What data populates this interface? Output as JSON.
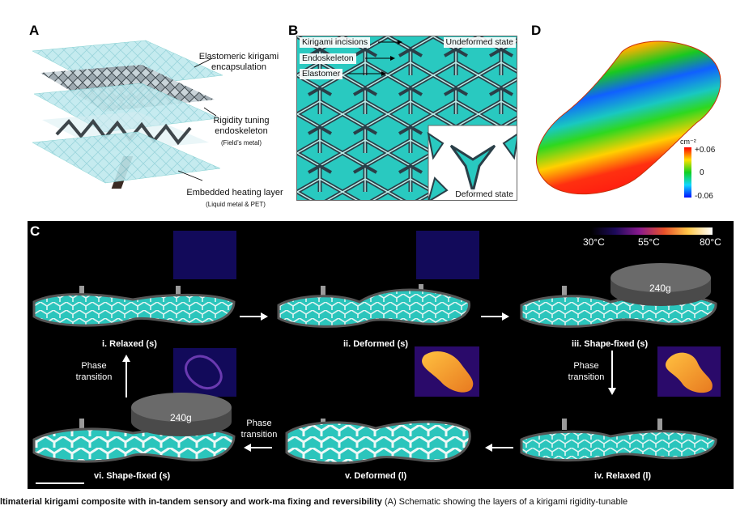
{
  "panels": {
    "a": {
      "letter": "A",
      "labels": {
        "encapsulation": "Elastomeric kirigami\nencapsulation",
        "endoskeleton": "Rigidity tuning\nendoskeleton",
        "endoskeleton_sub": "(Field’s metal)",
        "heating": "Embedded heating layer",
        "heating_sub": "(Liquid metal & PET)"
      }
    },
    "b": {
      "letter": "B",
      "labels": {
        "incisions": "Kirigami incisions",
        "endoskeleton": "Endoskeleton",
        "elastomer": "Elastomer",
        "undeformed": "Undeformed state",
        "deformed": "Deformed state"
      }
    },
    "c": {
      "letter": "C",
      "temp_scale": {
        "min": "30°C",
        "mid": "55°C",
        "max": "80°C"
      },
      "states": {
        "s1": "i. Relaxed (s)",
        "s2": "ii. Deformed (s)",
        "s3": "iii. Shape-fixed (s)",
        "s4": "iv. Relaxed (l)",
        "s5": "v. Deformed (l)",
        "s6": "vi. Shape-fixed (s)"
      },
      "weight": "240g",
      "phase_transition": "Phase\ntransition"
    },
    "d": {
      "letter": "D",
      "colorbar": {
        "unit": "cm⁻²",
        "max": "+0.06",
        "mid": "0",
        "min": "-0.06"
      }
    }
  },
  "caption_fragment": {
    "bold": "ltimaterial kirigami composite with in-tandem sensory and work-ma fixing and reversibility",
    "text": " (A) Schematic showing the layers of a kirigami rigidity-tunable"
  },
  "colors": {
    "elastomer": "#29c9c0",
    "endoskeleton": "#2a3f48",
    "background_c": "#000000"
  }
}
